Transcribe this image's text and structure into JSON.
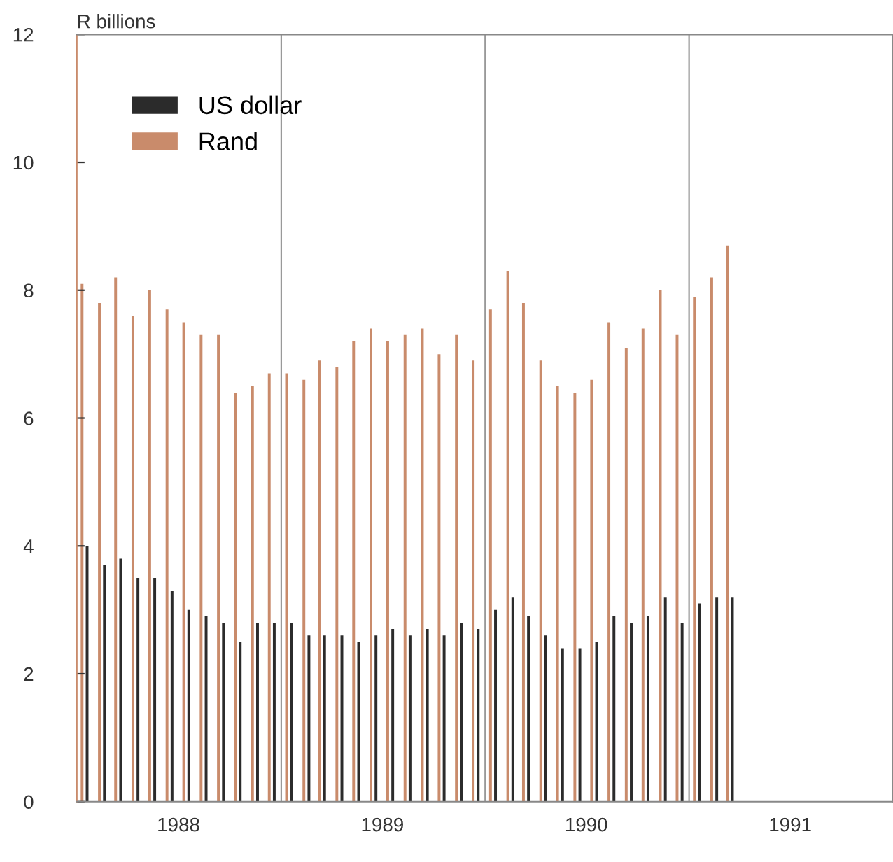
{
  "chart_data": {
    "type": "bar",
    "ylabel": "R billions",
    "x": [
      "1988-01-15",
      "1988-02-15",
      "1988-03-15",
      "1988-04-15",
      "1988-05-15",
      "1988-06-15",
      "1988-07-15",
      "1988-08-15",
      "1988-09-15",
      "1988-10-15",
      "1988-11-15",
      "1988-12-15",
      "1989-01-15",
      "1989-02-15",
      "1989-03-15",
      "1989-04-15",
      "1989-05-15",
      "1989-06-15",
      "1989-07-15",
      "1989-08-15",
      "1989-09-15",
      "1989-10-15",
      "1989-11-15",
      "1989-12-15",
      "1990-01-15",
      "1990-02-15",
      "1990-03-15",
      "1990-04-15",
      "1990-05-15",
      "1990-06-15",
      "1990-07-15",
      "1990-08-15",
      "1990-09-15",
      "1990-10-15",
      "1990-11-15",
      "1990-12-15",
      "1991-01-15",
      "1991-02-15",
      "1991-03-15"
    ],
    "series": [
      {
        "name": "US dollar",
        "color": "#2b2b2b",
        "values": [
          4.0,
          3.7,
          3.8,
          3.5,
          3.5,
          3.3,
          3.0,
          2.9,
          2.8,
          2.5,
          2.8,
          2.8,
          2.8,
          2.6,
          2.6,
          2.6,
          2.5,
          2.6,
          2.7,
          2.6,
          2.7,
          2.6,
          2.8,
          2.7,
          3.0,
          3.2,
          2.9,
          2.6,
          2.4,
          2.4,
          2.5,
          2.9,
          2.8,
          2.9,
          3.2,
          2.8,
          3.1,
          3.2,
          3.2
        ]
      },
      {
        "name": "Rand",
        "color": "#c98b6b",
        "values": [
          8.1,
          7.8,
          8.2,
          7.6,
          8.0,
          7.7,
          7.5,
          7.3,
          7.3,
          6.4,
          6.5,
          6.7,
          6.7,
          6.6,
          6.9,
          6.8,
          7.2,
          7.4,
          7.2,
          7.3,
          7.4,
          7.0,
          7.3,
          6.9,
          7.7,
          8.3,
          7.8,
          6.9,
          6.5,
          6.4,
          6.6,
          7.5,
          7.1,
          7.4,
          8.0,
          7.3,
          7.9,
          8.2,
          8.7
        ]
      }
    ],
    "xlim": [
      "1988-01-01",
      "1992-01-01"
    ],
    "xticks": [
      {
        "value": "1988-07-01",
        "label": "1988"
      },
      {
        "value": "1989-07-01",
        "label": "1989"
      },
      {
        "value": "1990-07-01",
        "label": "1990"
      },
      {
        "value": "1991-07-01",
        "label": "1991"
      }
    ],
    "ylim": [
      0,
      12
    ],
    "yticks": [
      0,
      2,
      4,
      6,
      8,
      10,
      12
    ],
    "ref_lines": [
      {
        "axis": "x",
        "value": "1989-01-01",
        "color": "#999999"
      },
      {
        "axis": "x",
        "value": "1990-01-01",
        "color": "#999999"
      },
      {
        "axis": "x",
        "value": "1991-01-01",
        "color": "#999999"
      }
    ],
    "grid": false,
    "legend": "top left"
  }
}
